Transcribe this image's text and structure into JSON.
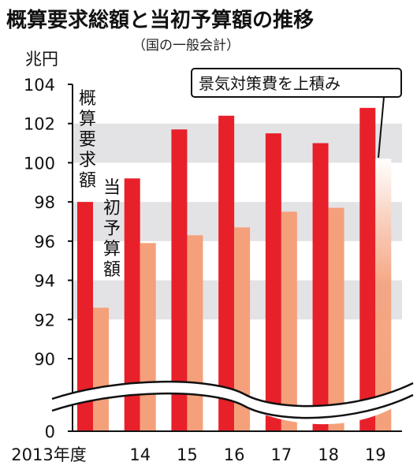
{
  "chart_data": {
    "type": "bar",
    "title": "概算要求総額と当初予算額の推移",
    "subtitle": "（国の一般会計）",
    "ylabel": "兆円",
    "ylim": [
      90,
      104
    ],
    "yticks": [
      0,
      90,
      92,
      94,
      96,
      98,
      100,
      102,
      104
    ],
    "axis_break": true,
    "categories": [
      "2013年度",
      "14",
      "15",
      "16",
      "17",
      "18",
      "19"
    ],
    "series": [
      {
        "name": "概算要求額",
        "color": "#e8202a",
        "values": [
          98.0,
          99.2,
          101.7,
          102.4,
          101.5,
          101.0,
          102.8
        ]
      },
      {
        "name": "当初予算額",
        "color": "#f4a07a",
        "values": [
          92.6,
          95.9,
          96.3,
          96.7,
          97.5,
          97.7,
          100.2
        ]
      }
    ],
    "annotation": "景気対策費を上積み",
    "grid": "alternating-bands"
  }
}
